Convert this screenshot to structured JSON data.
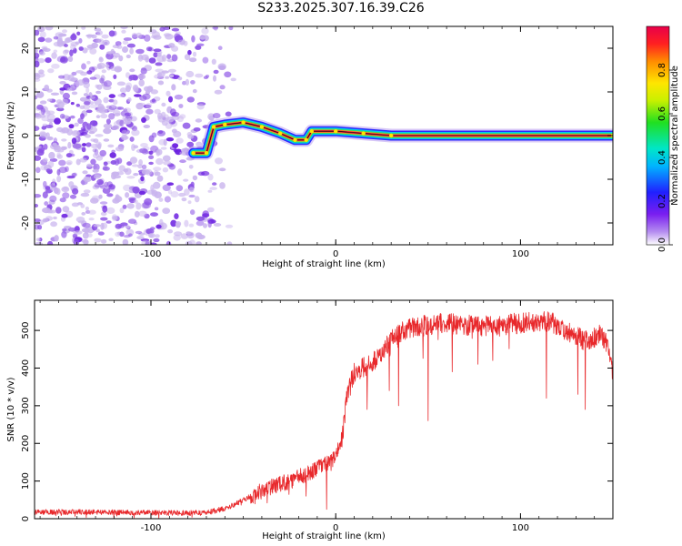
{
  "title": "S233.2025.307.16.39.C26",
  "colors": {
    "snr_line": "#e8282b",
    "core_line": "#000000",
    "noise_a": "#c9b4ee",
    "noise_b": "#8a50e6",
    "noise_c": "#6a1ee0"
  },
  "chart_data": [
    {
      "type": "heatmap",
      "name": "spectrogram",
      "title": "",
      "xlabel": "Height of straight line (km)",
      "ylabel": "Frequency (Hz)",
      "xlim": [
        -163,
        150
      ],
      "ylim": [
        -25,
        25
      ],
      "x_ticks": [
        -100,
        0,
        100
      ],
      "x_tick_labels": [
        "-100",
        "0",
        "100"
      ],
      "y_ticks": [
        20,
        10,
        0,
        -10,
        -20
      ],
      "y_tick_labels": [
        "20",
        "10",
        "0",
        "-10",
        "-20"
      ],
      "noise_region_km": [
        -163,
        -55
      ],
      "signal_track": [
        {
          "x": -77,
          "y": -4
        },
        {
          "x": -70,
          "y": -4
        },
        {
          "x": -66,
          "y": 2
        },
        {
          "x": -60,
          "y": 2.5
        },
        {
          "x": -50,
          "y": 3
        },
        {
          "x": -40,
          "y": 2
        },
        {
          "x": -30,
          "y": 0.5
        },
        {
          "x": -22,
          "y": -1
        },
        {
          "x": -16,
          "y": -1
        },
        {
          "x": -13,
          "y": 1
        },
        {
          "x": 0,
          "y": 1
        },
        {
          "x": 15,
          "y": 0.5
        },
        {
          "x": 30,
          "y": 0
        },
        {
          "x": 150,
          "y": 0
        }
      ],
      "colorbar": {
        "label": "Normalized spectral amplitude",
        "ticks": [
          0.0,
          0.2,
          0.4,
          0.6,
          0.8
        ],
        "tick_labels": [
          "0.0",
          "0.2",
          "0.4",
          "0.6",
          "0.8"
        ],
        "range": [
          0,
          1
        ]
      }
    },
    {
      "type": "line",
      "name": "snr",
      "title": "",
      "xlabel": "Height of straight line (km)",
      "ylabel": "SNR (10 * v/v)",
      "xlim": [
        -163,
        150
      ],
      "ylim": [
        0,
        580
      ],
      "x_ticks": [
        -100,
        0,
        100
      ],
      "x_tick_labels": [
        "-100",
        "0",
        "100"
      ],
      "y_ticks": [
        0,
        100,
        200,
        300,
        400,
        500
      ],
      "y_tick_labels": [
        "0",
        "100",
        "200",
        "300",
        "400",
        "500"
      ],
      "series": [
        {
          "name": "SNR",
          "points": [
            {
              "x": -163,
              "y": 18
            },
            {
              "x": -140,
              "y": 18
            },
            {
              "x": -120,
              "y": 17
            },
            {
              "x": -100,
              "y": 16
            },
            {
              "x": -80,
              "y": 15
            },
            {
              "x": -68,
              "y": 18
            },
            {
              "x": -58,
              "y": 30
            },
            {
              "x": -50,
              "y": 50
            },
            {
              "x": -42,
              "y": 70
            },
            {
              "x": -35,
              "y": 85
            },
            {
              "x": -25,
              "y": 100
            },
            {
              "x": -15,
              "y": 120
            },
            {
              "x": -8,
              "y": 140
            },
            {
              "x": -2,
              "y": 150
            },
            {
              "x": 3,
              "y": 200
            },
            {
              "x": 6,
              "y": 320
            },
            {
              "x": 10,
              "y": 390
            },
            {
              "x": 18,
              "y": 410
            },
            {
              "x": 25,
              "y": 440
            },
            {
              "x": 30,
              "y": 480
            },
            {
              "x": 40,
              "y": 505
            },
            {
              "x": 55,
              "y": 520
            },
            {
              "x": 70,
              "y": 515
            },
            {
              "x": 85,
              "y": 510
            },
            {
              "x": 100,
              "y": 520
            },
            {
              "x": 115,
              "y": 525
            },
            {
              "x": 125,
              "y": 500
            },
            {
              "x": 135,
              "y": 470
            },
            {
              "x": 143,
              "y": 490
            },
            {
              "x": 147,
              "y": 460
            },
            {
              "x": 150,
              "y": 380
            }
          ],
          "dips": [
            {
              "x": -16,
              "y": 60
            },
            {
              "x": -5,
              "y": 25
            },
            {
              "x": 17,
              "y": 290
            },
            {
              "x": 29,
              "y": 340
            },
            {
              "x": 34,
              "y": 300
            },
            {
              "x": 50,
              "y": 260
            },
            {
              "x": 63,
              "y": 390
            },
            {
              "x": 77,
              "y": 410
            },
            {
              "x": 85,
              "y": 420
            },
            {
              "x": 114,
              "y": 320
            },
            {
              "x": 131,
              "y": 330
            },
            {
              "x": 135,
              "y": 290
            }
          ]
        }
      ]
    }
  ]
}
